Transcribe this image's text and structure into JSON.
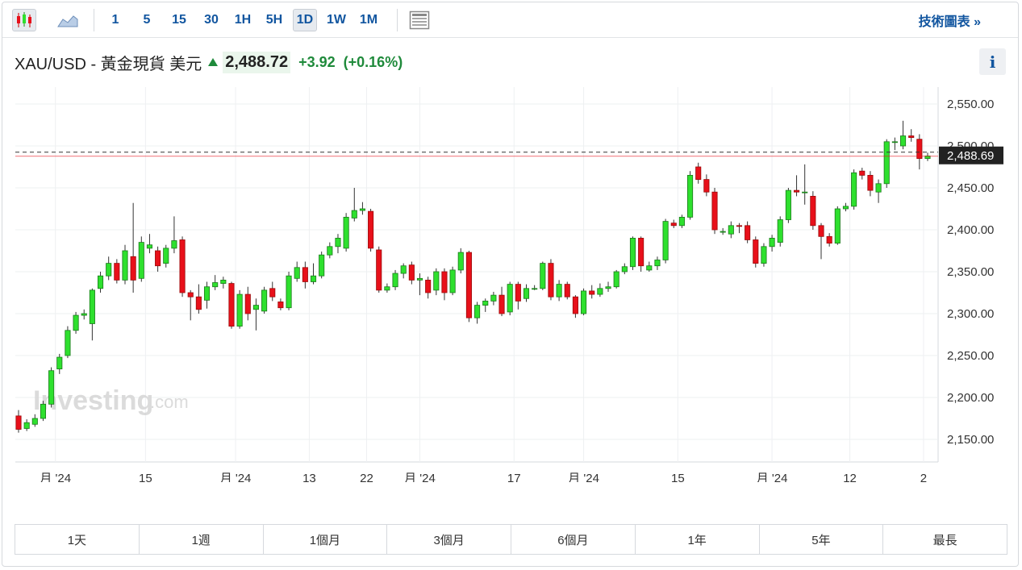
{
  "toolbar": {
    "chart_types": [
      {
        "name": "candlestick-icon"
      },
      {
        "name": "area-chart-icon"
      }
    ],
    "intervals": [
      "1",
      "5",
      "15",
      "30",
      "1H",
      "5H",
      "1D",
      "1W",
      "1M"
    ],
    "active_interval": "1D",
    "table_icon": "table-icon",
    "tech_link": "技術圖表 »"
  },
  "header": {
    "instrument": "XAU/USD - 黃金現貨 美元",
    "price": "2,488.72",
    "change": "+3.92",
    "change_pct": "(+0.16%)",
    "info_label": "i"
  },
  "watermark": {
    "brand": "Investing",
    "suffix": ".com"
  },
  "colors": {
    "up": "#2ee02e",
    "down": "#e8101a",
    "text_up": "#1f8a3b",
    "link": "#1256a0"
  },
  "chart_data": {
    "type": "candlestick",
    "current_price_label": "2,488.69",
    "current_price": 2488.69,
    "y_ticks": [
      "2,550.00",
      "2,500.00",
      "2,450.00",
      "2,400.00",
      "2,350.00",
      "2,300.00",
      "2,250.00",
      "2,200.00",
      "2,150.00"
    ],
    "y_tick_values": [
      2550,
      2500,
      2450,
      2400,
      2350,
      2300,
      2250,
      2200,
      2150
    ],
    "ylim": [
      2120,
      2570
    ],
    "x_labels": [
      {
        "label": "月 '24",
        "index": 4.5
      },
      {
        "label": "15",
        "index": 15.5
      },
      {
        "label": "月 '24",
        "index": 26.5
      },
      {
        "label": "13",
        "index": 35.5
      },
      {
        "label": "22",
        "index": 42.5
      },
      {
        "label": "月 '24",
        "index": 49
      },
      {
        "label": "17",
        "index": 60.5
      },
      {
        "label": "月 '24",
        "index": 69
      },
      {
        "label": "15",
        "index": 80.5
      },
      {
        "label": "月 '24",
        "index": 92
      },
      {
        "label": "12",
        "index": 101.5
      },
      {
        "label": "2",
        "index": 110.5
      }
    ],
    "candles": [
      [
        2178,
        2162,
        2185,
        2158
      ],
      [
        2163,
        2170,
        2174,
        2160
      ],
      [
        2168,
        2175,
        2180,
        2165
      ],
      [
        2175,
        2192,
        2196,
        2172
      ],
      [
        2192,
        2232,
        2236,
        2188
      ],
      [
        2234,
        2248,
        2252,
        2228
      ],
      [
        2250,
        2280,
        2285,
        2247
      ],
      [
        2280,
        2298,
        2302,
        2276
      ],
      [
        2298,
        2300,
        2305,
        2293
      ],
      [
        2288,
        2328,
        2330,
        2268
      ],
      [
        2330,
        2345,
        2350,
        2325
      ],
      [
        2345,
        2360,
        2368,
        2340
      ],
      [
        2360,
        2340,
        2365,
        2336
      ],
      [
        2340,
        2375,
        2382,
        2335
      ],
      [
        2368,
        2340,
        2432,
        2325
      ],
      [
        2342,
        2385,
        2392,
        2338
      ],
      [
        2378,
        2382,
        2395,
        2372
      ],
      [
        2375,
        2357,
        2380,
        2350
      ],
      [
        2360,
        2378,
        2382,
        2355
      ],
      [
        2378,
        2387,
        2416,
        2372
      ],
      [
        2388,
        2325,
        2392,
        2320
      ],
      [
        2325,
        2320,
        2328,
        2292
      ],
      [
        2320,
        2305,
        2335,
        2300
      ],
      [
        2316,
        2332,
        2338,
        2306
      ],
      [
        2332,
        2337,
        2346,
        2328
      ],
      [
        2336,
        2340,
        2344,
        2330
      ],
      [
        2336,
        2285,
        2338,
        2282
      ],
      [
        2285,
        2323,
        2328,
        2282
      ],
      [
        2323,
        2300,
        2332,
        2292
      ],
      [
        2305,
        2310,
        2318,
        2280
      ],
      [
        2303,
        2328,
        2332,
        2300
      ],
      [
        2330,
        2320,
        2338,
        2315
      ],
      [
        2314,
        2307,
        2318,
        2304
      ],
      [
        2307,
        2345,
        2350,
        2304
      ],
      [
        2342,
        2355,
        2362,
        2338
      ],
      [
        2355,
        2338,
        2362,
        2330
      ],
      [
        2338,
        2345,
        2360,
        2335
      ],
      [
        2345,
        2370,
        2374,
        2342
      ],
      [
        2370,
        2380,
        2385,
        2366
      ],
      [
        2380,
        2390,
        2395,
        2372
      ],
      [
        2378,
        2415,
        2420,
        2374
      ],
      [
        2414,
        2423,
        2450,
        2410
      ],
      [
        2423,
        2425,
        2433,
        2418
      ],
      [
        2422,
        2378,
        2425,
        2374
      ],
      [
        2376,
        2328,
        2380,
        2325
      ],
      [
        2328,
        2332,
        2336,
        2325
      ],
      [
        2332,
        2348,
        2352,
        2328
      ],
      [
        2348,
        2357,
        2360,
        2342
      ],
      [
        2358,
        2340,
        2362,
        2335
      ],
      [
        2340,
        2342,
        2348,
        2322
      ],
      [
        2340,
        2325,
        2344,
        2318
      ],
      [
        2328,
        2350,
        2354,
        2322
      ],
      [
        2350,
        2325,
        2354,
        2316
      ],
      [
        2325,
        2352,
        2356,
        2322
      ],
      [
        2352,
        2373,
        2378,
        2348
      ],
      [
        2373,
        2295,
        2375,
        2290
      ],
      [
        2295,
        2310,
        2314,
        2288
      ],
      [
        2310,
        2315,
        2318,
        2302
      ],
      [
        2315,
        2322,
        2326,
        2310
      ],
      [
        2322,
        2300,
        2332,
        2297
      ],
      [
        2302,
        2335,
        2338,
        2298
      ],
      [
        2335,
        2315,
        2338,
        2305
      ],
      [
        2318,
        2330,
        2335,
        2314
      ],
      [
        2330,
        2330,
        2334,
        2328
      ],
      [
        2330,
        2360,
        2362,
        2328
      ],
      [
        2360,
        2320,
        2365,
        2316
      ],
      [
        2320,
        2335,
        2340,
        2315
      ],
      [
        2335,
        2320,
        2338,
        2317
      ],
      [
        2320,
        2300,
        2322,
        2295
      ],
      [
        2300,
        2327,
        2330,
        2298
      ],
      [
        2327,
        2323,
        2334,
        2318
      ],
      [
        2323,
        2330,
        2336,
        2320
      ],
      [
        2330,
        2332,
        2338,
        2326
      ],
      [
        2332,
        2350,
        2352,
        2330
      ],
      [
        2350,
        2356,
        2360,
        2347
      ],
      [
        2356,
        2390,
        2392,
        2352
      ],
      [
        2390,
        2357,
        2392,
        2350
      ],
      [
        2352,
        2357,
        2362,
        2350
      ],
      [
        2357,
        2364,
        2368,
        2352
      ],
      [
        2364,
        2410,
        2413,
        2360
      ],
      [
        2408,
        2405,
        2412,
        2402
      ],
      [
        2405,
        2415,
        2418,
        2402
      ],
      [
        2415,
        2465,
        2470,
        2412
      ],
      [
        2475,
        2460,
        2480,
        2455
      ],
      [
        2460,
        2445,
        2466,
        2440
      ],
      [
        2445,
        2400,
        2450,
        2395
      ],
      [
        2398,
        2398,
        2402,
        2394
      ],
      [
        2395,
        2405,
        2410,
        2390
      ],
      [
        2405,
        2404,
        2408,
        2396
      ],
      [
        2405,
        2388,
        2410,
        2384
      ],
      [
        2388,
        2360,
        2392,
        2355
      ],
      [
        2360,
        2380,
        2384,
        2356
      ],
      [
        2380,
        2390,
        2394,
        2374
      ],
      [
        2385,
        2412,
        2416,
        2380
      ],
      [
        2412,
        2447,
        2450,
        2408
      ],
      [
        2447,
        2445,
        2465,
        2440
      ],
      [
        2445,
        2445,
        2478,
        2430
      ],
      [
        2440,
        2405,
        2446,
        2400
      ],
      [
        2405,
        2392,
        2408,
        2365
      ],
      [
        2392,
        2384,
        2396,
        2380
      ],
      [
        2384,
        2425,
        2428,
        2382
      ],
      [
        2425,
        2428,
        2432,
        2422
      ],
      [
        2428,
        2468,
        2472,
        2424
      ],
      [
        2470,
        2465,
        2474,
        2460
      ],
      [
        2465,
        2447,
        2470,
        2440
      ],
      [
        2445,
        2455,
        2460,
        2432
      ],
      [
        2455,
        2505,
        2508,
        2450
      ],
      [
        2505,
        2505,
        2510,
        2495
      ],
      [
        2500,
        2512,
        2530,
        2496
      ],
      [
        2512,
        2510,
        2520,
        2505
      ],
      [
        2508,
        2485,
        2514,
        2472
      ],
      [
        2485,
        2488,
        2492,
        2482
      ]
    ]
  },
  "ranges": [
    "1天",
    "1週",
    "1個月",
    "3個月",
    "6個月",
    "1年",
    "5年",
    "最長"
  ]
}
